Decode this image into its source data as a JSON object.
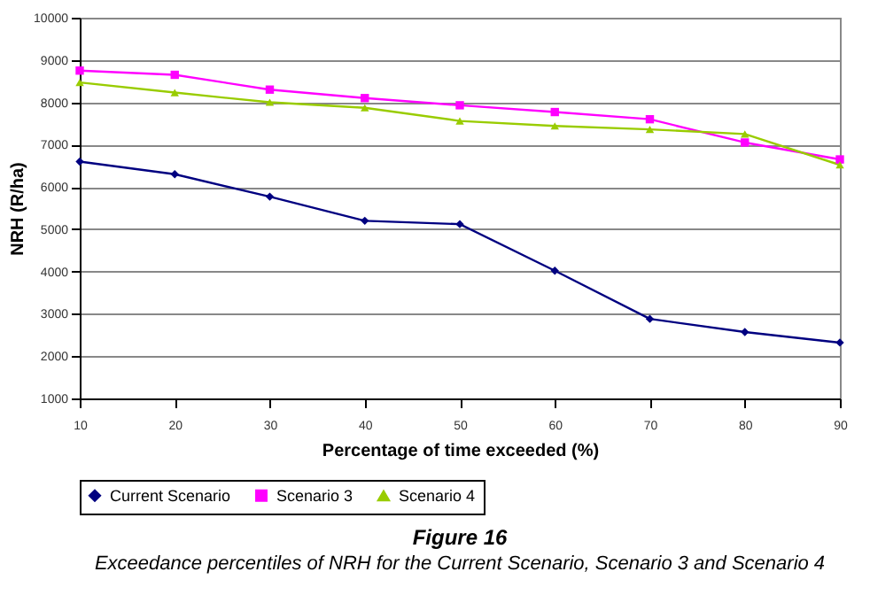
{
  "chart_data": {
    "type": "line",
    "title": "Figure 16",
    "subtitle": "Exceedance percentiles of NRH for the Current Scenario, Scenario 3 and Scenario 4",
    "xlabel": "Percentage of time exceeded (%)",
    "ylabel": "NRH (R/ha)",
    "x": [
      10,
      20,
      30,
      40,
      50,
      60,
      70,
      80,
      90
    ],
    "series": [
      {
        "name": "Current Scenario",
        "color": "#000080",
        "marker": "diamond",
        "values": [
          6600,
          6300,
          5770,
          5200,
          5120,
          4020,
          2880,
          2570,
          2320
        ]
      },
      {
        "name": "Scenario 3",
        "color": "#ff00ff",
        "marker": "square",
        "values": [
          8750,
          8650,
          8300,
          8100,
          7930,
          7770,
          7600,
          7050,
          6650
        ]
      },
      {
        "name": "Scenario 4",
        "color": "#99cc00",
        "marker": "triangle",
        "values": [
          8470,
          8230,
          8000,
          7870,
          7560,
          7440,
          7360,
          7250,
          6520
        ]
      }
    ],
    "xlim": [
      10,
      90
    ],
    "xticks": [
      10,
      20,
      30,
      40,
      50,
      60,
      70,
      80,
      90
    ],
    "ylim": [
      1000,
      10000
    ],
    "yticks": [
      1000,
      2000,
      3000,
      4000,
      5000,
      6000,
      7000,
      8000,
      9000,
      10000
    ],
    "grid": "y",
    "legend": "bottom",
    "line_style": "solid"
  }
}
